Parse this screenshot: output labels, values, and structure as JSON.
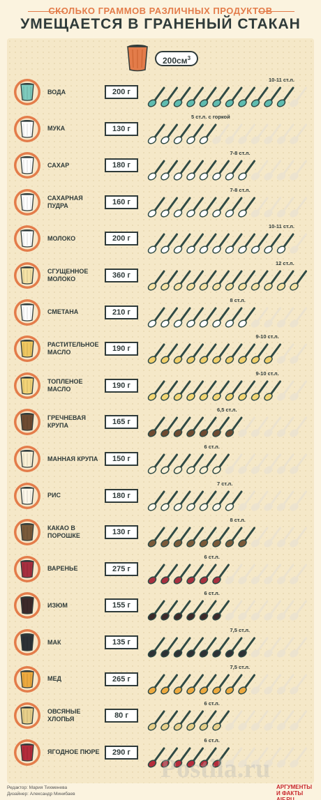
{
  "header": {
    "subtitle": "СКОЛЬКО ГРАММОВ РАЗЛИЧНЫХ ПРОДУКТОВ",
    "title": "УМЕЩАЕТСЯ В ГРАНЕНЫЙ СТАКАН"
  },
  "legend": {
    "volume": "200",
    "unit": "см",
    "unit_sup": "3"
  },
  "colors": {
    "accent": "#e37c4a",
    "dark": "#2f3b3a",
    "spoon_handle": "#2f4a45",
    "empty_spoon": "#ece3cf"
  },
  "items": [
    {
      "label": "ВОДА",
      "weight": "200 г",
      "note": "10-11 ст.л.",
      "spoons": 11,
      "fill": "#5fbcb0",
      "cup": "#7ecbbe"
    },
    {
      "label": "МУКА",
      "weight": "130 г",
      "note": "5 ст.л. с горкой",
      "spoons": 5,
      "fill": "#ffffff",
      "cup": "#ffffff"
    },
    {
      "label": "САХАР",
      "weight": "180 г",
      "note": "7-8 ст.л.",
      "spoons": 8,
      "fill": "#ffffff",
      "cup": "#ffffff"
    },
    {
      "label": "САХАРНАЯ ПУДРА",
      "weight": "160 г",
      "note": "7-8 ст.л.",
      "spoons": 8,
      "fill": "#ffffff",
      "cup": "#ffffff"
    },
    {
      "label": "МОЛОКО",
      "weight": "200 г",
      "note": "10-11 ст.л.",
      "spoons": 11,
      "fill": "#ffffff",
      "cup": "#ffffff"
    },
    {
      "label": "СГУЩЕННОЕ МОЛОКО",
      "weight": "360 г",
      "note": "12 ст.л.",
      "spoons": 12,
      "fill": "#f6e3a6",
      "cup": "#f6e3a6"
    },
    {
      "label": "СМЕТАНА",
      "weight": "210 г",
      "note": "8 ст.л.",
      "spoons": 8,
      "fill": "#ffffff",
      "cup": "#ffffff"
    },
    {
      "label": "РАСТИТЕЛЬНОЕ МАСЛО",
      "weight": "190 г",
      "note": "9-10 ст.л.",
      "spoons": 10,
      "fill": "#f2cf6a",
      "cup": "#f0c860"
    },
    {
      "label": "ТОПЛЕНОЕ МАСЛО",
      "weight": "190 г",
      "note": "9-10 ст.л.",
      "spoons": 10,
      "fill": "#f4d774",
      "cup": "#f3d477"
    },
    {
      "label": "ГРЕЧНЕВАЯ КРУПА",
      "weight": "165 г",
      "note": "6,5 ст.л.",
      "spoons": 7,
      "fill": "#6e4b32",
      "cup": "#6e4b32"
    },
    {
      "label": "МАННАЯ КРУПА",
      "weight": "150 г",
      "note": "6 ст.л.",
      "spoons": 6,
      "fill": "#fbf1d6",
      "cup": "#fbf1d6"
    },
    {
      "label": "РИС",
      "weight": "180 г",
      "note": "7 ст.л.",
      "spoons": 7,
      "fill": "#fdf8ea",
      "cup": "#fdf8ea"
    },
    {
      "label": "КАКАО В ПОРОШКЕ",
      "weight": "130 г",
      "note": "8 ст.л.",
      "spoons": 8,
      "fill": "#7a5a3a",
      "cup": "#7a5a3a"
    },
    {
      "label": "ВАРЕНЬЕ",
      "weight": "275 г",
      "note": "6 ст.л.",
      "spoons": 6,
      "fill": "#a8303f",
      "cup": "#a8303f"
    },
    {
      "label": "ИЗЮМ",
      "weight": "155 г",
      "note": "6 ст.л.",
      "spoons": 6,
      "fill": "#3d2a2a",
      "cup": "#3d2a2a"
    },
    {
      "label": "МАК",
      "weight": "135 г",
      "note": "7,5 ст.л.",
      "spoons": 8,
      "fill": "#2e3236",
      "cup": "#2e3236"
    },
    {
      "label": "МЕД",
      "weight": "265 г",
      "note": "7,5 ст.л.",
      "spoons": 8,
      "fill": "#eeaa3f",
      "cup": "#eeaa3f"
    },
    {
      "label": "ОВСЯНЫЕ ХЛОПЬЯ",
      "weight": "80 г",
      "note": "6 ст.л.",
      "spoons": 6,
      "fill": "#e8d08a",
      "cup": "#e8d08a"
    },
    {
      "label": "ЯГОДНОЕ ПЮРЕ",
      "weight": "290 г",
      "note": "6 ст.л.",
      "spoons": 6,
      "fill": "#b52c3b",
      "cup": "#b52c3b"
    }
  ],
  "footer": {
    "editor": "Редактор: Мария Тихменева",
    "designer": "Дизайнер: Александр Минибаев",
    "brand_line1": "АРГУМЕНТЫ",
    "brand_line2": "И ФАКТЫ AIF.RU"
  },
  "watermark": "Postila.ru"
}
